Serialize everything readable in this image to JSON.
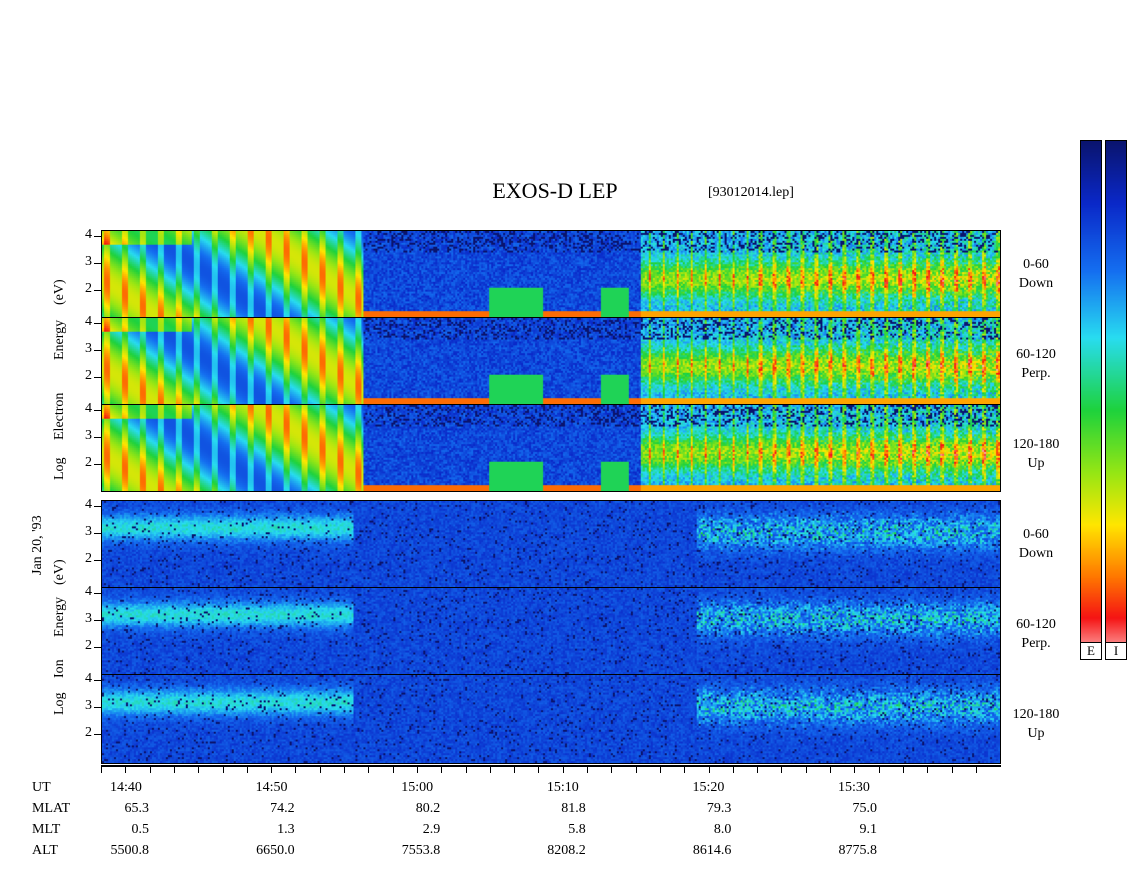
{
  "header": {
    "title": "EXOS-D LEP",
    "filename": "[93012014.lep]"
  },
  "date_label": "Jan 20, '93",
  "electron": {
    "label_words": [
      "Log",
      "Electron",
      "Energy",
      "(eV)"
    ],
    "panels": [
      {
        "angle": "0-60",
        "direction": "Down"
      },
      {
        "angle": "60-120",
        "direction": "Perp."
      },
      {
        "angle": "120-180",
        "direction": "Up"
      }
    ]
  },
  "ion": {
    "label_words": [
      "Log",
      "Ion",
      "Energy",
      "(eV)"
    ],
    "panels": [
      {
        "angle": "0-60",
        "direction": "Down"
      },
      {
        "angle": "60-120",
        "direction": "Perp."
      },
      {
        "angle": "120-180",
        "direction": "Up"
      }
    ]
  },
  "y_ticks": [
    "4",
    "3",
    "2"
  ],
  "orbit_table": {
    "row_labels": [
      "UT",
      "MLAT",
      "MLT",
      "ALT"
    ],
    "UT": [
      "14:40",
      "14:50",
      "15:00",
      "15:10",
      "15:20",
      "15:30"
    ],
    "MLAT": [
      "65.3",
      "74.2",
      "80.2",
      "81.8",
      "79.3",
      "75.0"
    ],
    "MLT": [
      "0.5",
      "1.3",
      "2.9",
      "5.8",
      "8.0",
      "9.1"
    ],
    "ALT": [
      "5500.8",
      "6650.0",
      "7553.8",
      "8208.2",
      "8614.6",
      "8775.8"
    ]
  },
  "colorbars": [
    {
      "key": "E"
    },
    {
      "key": "I"
    }
  ],
  "colors": {
    "low": "#0a2a8c",
    "mid": "#14d214",
    "high": "#ff1a1a",
    "bg": "#ffffff"
  },
  "chart_data": {
    "type": "heatmap",
    "title": "EXOS-D LEP",
    "subtitle": "[93012014.lep]",
    "ylabel_electron": "Log Electron Energy (eV)",
    "ylabel_ion": "Log Ion Energy (eV)",
    "ylim": [
      1,
      4.2
    ],
    "x_ticks": [
      "14:40",
      "14:50",
      "15:00",
      "15:10",
      "15:20",
      "15:30"
    ],
    "panels": [
      "0-60 Down",
      "60-120 Perp.",
      "120-180 Up",
      "0-60 Down",
      "60-120 Perp.",
      "120-180 Up"
    ]
  }
}
